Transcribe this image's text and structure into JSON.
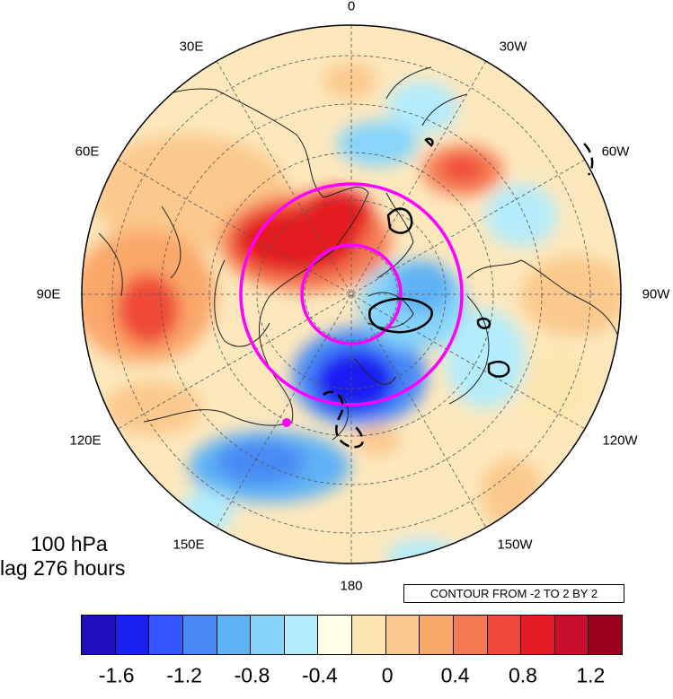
{
  "map": {
    "projection": "north polar stereographic",
    "longitude_labels": [
      "0",
      "30W",
      "60W",
      "90W",
      "120W",
      "150W",
      "180",
      "150E",
      "120E",
      "90E",
      "60E",
      "30E"
    ],
    "contour_note": "CONTOUR FROM -2 TO 2 BY 2",
    "info": {
      "level": "100 hPa",
      "lag": "lag 276 hours"
    },
    "highlight_color": "#ff00ff"
  },
  "colorbar": {
    "colors": [
      "#1f0fbd",
      "#1a1ff2",
      "#3355ff",
      "#4a8af5",
      "#5fb2f5",
      "#86d4fa",
      "#b4ecfb",
      "#ffffe6",
      "#fde6b1",
      "#fbc98d",
      "#faa76a",
      "#f57a52",
      "#f04838",
      "#e31b24",
      "#c8102e",
      "#99001c"
    ],
    "labels": [
      "-1.6",
      "-1.2",
      "-0.8",
      "-0.4",
      "0",
      "0.4",
      "0.8",
      "1.2"
    ]
  }
}
